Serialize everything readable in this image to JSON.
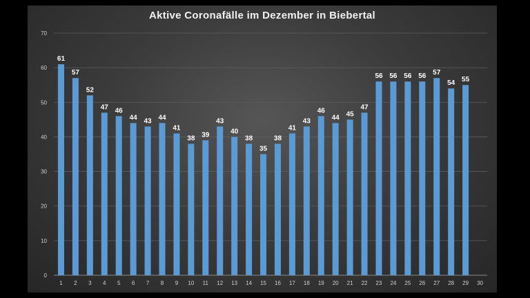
{
  "chart_data": {
    "type": "bar",
    "title": "Aktive Coronafälle im Dezember in Biebertal",
    "xlabel": "",
    "ylabel": "",
    "ylim": [
      0,
      70
    ],
    "yticks": [
      0,
      10,
      20,
      30,
      40,
      50,
      60,
      70
    ],
    "categories": [
      "1",
      "2",
      "3",
      "4",
      "5",
      "6",
      "7",
      "8",
      "9",
      "10",
      "11",
      "12",
      "13",
      "14",
      "15",
      "16",
      "17",
      "18",
      "19",
      "20",
      "21",
      "22",
      "23",
      "24",
      "25",
      "26",
      "27",
      "28",
      "29",
      "30"
    ],
    "values": [
      61,
      57,
      52,
      47,
      46,
      44,
      43,
      44,
      41,
      38,
      39,
      43,
      40,
      38,
      35,
      38,
      41,
      43,
      46,
      44,
      45,
      47,
      56,
      56,
      56,
      56,
      57,
      54,
      55,
      null
    ],
    "grid": true,
    "bar_color": "#5b9bd5",
    "gridline_color": "#5e5e5e"
  }
}
